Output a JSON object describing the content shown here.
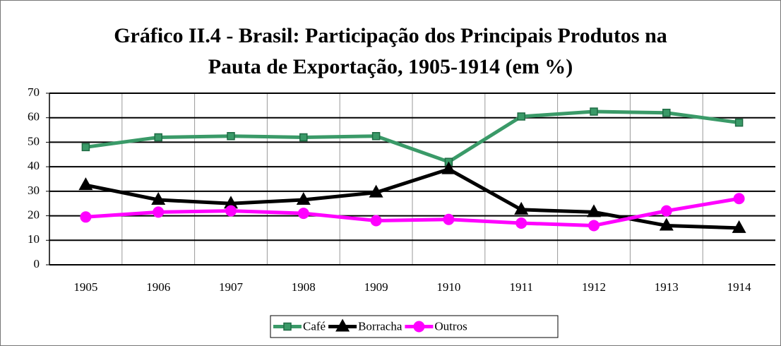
{
  "chart_data": {
    "type": "line",
    "title": [
      "Gráfico II.4 - Brasil: Participação dos Principais Produtos na",
      "Pauta de Exportação, 1905-1914 (em %)"
    ],
    "categories": [
      "1905",
      "1906",
      "1907",
      "1908",
      "1909",
      "1910",
      "1911",
      "1912",
      "1913",
      "1914"
    ],
    "series": [
      {
        "name": "Café",
        "color": "#3a9a68",
        "marker": "square",
        "values": [
          48,
          52,
          52.5,
          52,
          52.5,
          42,
          60.5,
          62.5,
          62,
          58
        ]
      },
      {
        "name": "Borracha",
        "color": "#000000",
        "marker": "triangle",
        "values": [
          32.5,
          26.5,
          25,
          26.5,
          29.5,
          39,
          22.5,
          21.5,
          16,
          15
        ]
      },
      {
        "name": "Outros",
        "color": "#ff00ff",
        "marker": "circle",
        "values": [
          19.5,
          21.5,
          22,
          21,
          18,
          18.5,
          17,
          16,
          22,
          27
        ]
      }
    ],
    "ylim": [
      0,
      70
    ],
    "yticks": [
      0,
      10,
      20,
      30,
      40,
      50,
      60,
      70
    ],
    "grid": true,
    "legend": "bottom"
  }
}
